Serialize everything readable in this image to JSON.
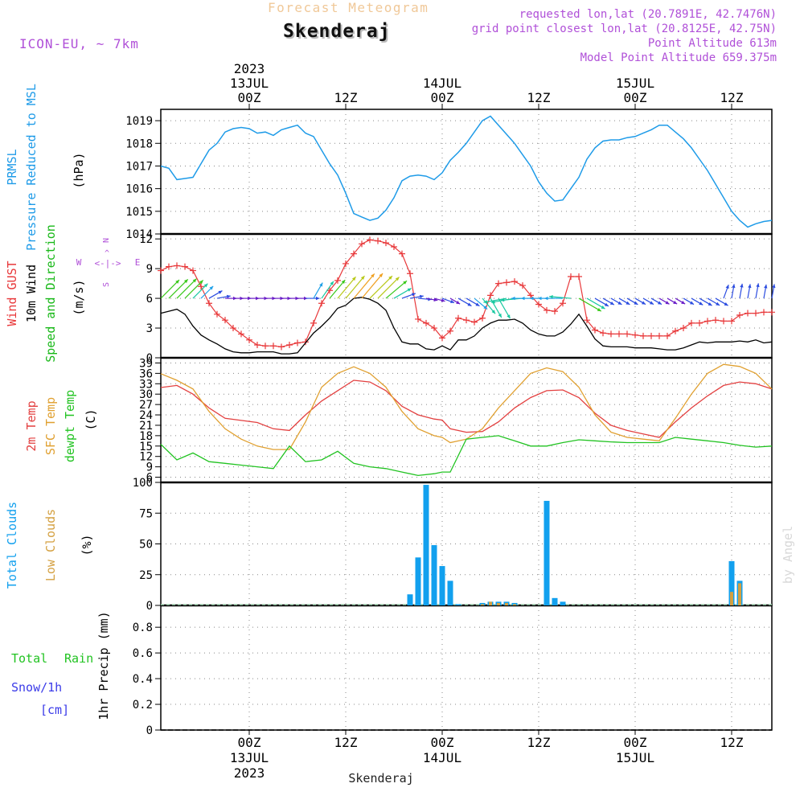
{
  "header": {
    "app_title": "Forecast Meteogram",
    "location": "Skenderaj",
    "model": "ICON-EU, ~ 7km",
    "requested": "requested lon,lat (20.7891E, 42.7476N)",
    "closest": "grid point closest lon,lat (20.8125E, 42.75N)",
    "point_altitude": "Point Altitude 613m",
    "model_altitude": "Model Point Altitude 659.375m",
    "watermark": "by Angel",
    "footer_location": "Skenderaj"
  },
  "time_axis": {
    "ticks": [
      {
        "hour": 0,
        "label": "00Z",
        "date": "13JUL",
        "year": "2023"
      },
      {
        "hour": 12,
        "label": "12Z",
        "date": "",
        "year": ""
      },
      {
        "hour": 24,
        "label": "00Z",
        "date": "14JUL",
        "year": ""
      },
      {
        "hour": 36,
        "label": "12Z",
        "date": "",
        "year": ""
      },
      {
        "hour": 48,
        "label": "00Z",
        "date": "15JUL",
        "year": ""
      },
      {
        "hour": 60,
        "label": "12Z",
        "date": "",
        "year": ""
      }
    ],
    "range_hours": [
      -11,
      65
    ]
  },
  "colors": {
    "pressure": "#1e9be8",
    "gust": "#e8383a",
    "wind": "#000000",
    "wind_label_green": "#18b818",
    "temp2m": "#e34040",
    "sfc_temp": "#e0a030",
    "dewpt": "#22c322",
    "total_clouds": "#12a0ee",
    "low_clouds": "#d4a040",
    "rain": "#22c322",
    "snow": "#3a3ae8",
    "purple": "#b050d8",
    "grid": "#888888"
  },
  "panels": {
    "pressure": {
      "labels": [
        "PRMSL",
        "Pressure Reduced to MSL"
      ],
      "unit": "(hPa)",
      "yticks": [
        1014,
        1015,
        1016,
        1017,
        1018,
        1019
      ]
    },
    "wind": {
      "labels": [
        "Wind GUST",
        "10m Wind",
        "Speed and Direction"
      ],
      "unit": "(m/s)",
      "yticks": [
        0,
        3,
        6,
        9,
        12
      ],
      "compass": {
        "n": "N",
        "s": "S",
        "w": "W",
        "e": "E",
        "arrow_ns": "^",
        "arrow_ew": "<-|->"
      }
    },
    "temp": {
      "labels": [
        "2m Temp",
        "SFC Temp",
        "dewpt Temp"
      ],
      "unit": "(C)",
      "yticks": [
        6,
        9,
        12,
        15,
        18,
        21,
        24,
        27,
        30,
        33,
        36,
        39
      ]
    },
    "clouds": {
      "labels": [
        "Total Clouds",
        "Low Clouds"
      ],
      "unit": "(%)",
      "yticks": [
        0,
        25,
        50,
        75,
        100
      ]
    },
    "precip": {
      "labels": [
        "Total",
        "Rain",
        "Snow/1h",
        "[cm]"
      ],
      "unit": "1hr Precip (mm)",
      "yticks": [
        0,
        0.2,
        0.4,
        0.6,
        0.8
      ]
    }
  },
  "chart_data": [
    {
      "type": "line",
      "title": "PRMSL Pressure Reduced to MSL",
      "ylabel": "(hPa)",
      "ylim": [
        1014,
        1019.5
      ],
      "series": [
        {
          "name": "PRMSL",
          "x": [
            -11,
            -10,
            -9,
            -8,
            -7,
            -6,
            -5,
            -4,
            -3,
            -2,
            -1,
            0,
            1,
            2,
            3,
            4,
            5,
            6,
            7,
            8,
            9,
            10,
            11,
            12,
            13,
            14,
            15,
            16,
            17,
            18,
            19,
            20,
            21,
            22,
            23,
            24,
            25,
            26,
            27,
            28,
            29,
            30,
            31,
            32,
            33,
            34,
            35,
            36,
            37,
            38,
            39,
            40,
            41,
            42,
            43,
            44,
            45,
            46,
            47,
            48,
            49,
            50,
            51,
            52,
            53,
            54,
            55,
            56,
            57,
            58,
            59,
            60,
            61,
            62,
            63,
            64,
            65
          ],
          "values": [
            1017.0,
            1016.9,
            1016.4,
            1016.45,
            1016.5,
            1017.1,
            1017.7,
            1018.0,
            1018.5,
            1018.65,
            1018.7,
            1018.65,
            1018.45,
            1018.5,
            1018.35,
            1018.6,
            1018.7,
            1018.8,
            1018.45,
            1018.3,
            1017.7,
            1017.1,
            1016.6,
            1015.8,
            1014.9,
            1014.75,
            1014.6,
            1014.7,
            1015.05,
            1015.6,
            1016.35,
            1016.55,
            1016.6,
            1016.55,
            1016.4,
            1016.7,
            1017.25,
            1017.6,
            1018.0,
            1018.5,
            1019.0,
            1019.2,
            1018.8,
            1018.4,
            1018.0,
            1017.5,
            1017.0,
            1016.3,
            1015.8,
            1015.45,
            1015.5,
            1016.0,
            1016.5,
            1017.3,
            1017.8,
            1018.1,
            1018.15,
            1018.15,
            1018.25,
            1018.3,
            1018.45,
            1018.6,
            1018.8,
            1018.8,
            1018.5,
            1018.2,
            1017.8,
            1017.3,
            1016.8,
            1016.2,
            1015.6,
            1015.0,
            1014.6,
            1014.3,
            1014.45,
            1014.55,
            1014.6
          ]
        }
      ]
    },
    {
      "type": "line",
      "title": "Wind GUST / 10m Wind Speed and Direction",
      "ylabel": "(m/s)",
      "ylim": [
        0,
        12.5
      ],
      "x": [
        -11,
        -10,
        -9,
        -8,
        -7,
        -6,
        -5,
        -4,
        -3,
        -2,
        -1,
        0,
        1,
        2,
        3,
        4,
        5,
        6,
        7,
        8,
        9,
        10,
        11,
        12,
        13,
        14,
        15,
        16,
        17,
        18,
        19,
        20,
        21,
        22,
        23,
        24,
        25,
        26,
        27,
        28,
        29,
        30,
        31,
        32,
        33,
        34,
        35,
        36,
        37,
        38,
        39,
        40,
        41,
        42,
        43,
        44,
        45,
        46,
        47,
        48,
        49,
        50,
        51,
        52,
        53,
        54,
        55,
        56,
        57,
        58,
        59,
        60,
        61,
        62,
        63,
        64,
        65
      ],
      "series": [
        {
          "name": "Wind GUST",
          "values": [
            8.8,
            9.2,
            9.3,
            9.2,
            8.8,
            7.2,
            5.5,
            4.4,
            3.8,
            3.0,
            2.4,
            1.8,
            1.3,
            1.2,
            1.2,
            1.1,
            1.3,
            1.5,
            1.6,
            3.5,
            5.5,
            6.8,
            7.8,
            9.5,
            10.5,
            11.5,
            11.9,
            11.8,
            11.6,
            11.2,
            10.5,
            8.5,
            3.9,
            3.5,
            3.0,
            2.0,
            2.7,
            4.0,
            3.8,
            3.6,
            4.0,
            6.3,
            7.5,
            7.6,
            7.7,
            7.3,
            6.3,
            5.4,
            4.8,
            4.7,
            5.5,
            8.2,
            8.2,
            3.8,
            2.8,
            2.5,
            2.4,
            2.4,
            2.4,
            2.3,
            2.2,
            2.2,
            2.2,
            2.2,
            2.7,
            3.0,
            3.5,
            3.5,
            3.7,
            3.8,
            3.7,
            3.7,
            4.3,
            4.5,
            4.5,
            4.6,
            4.6
          ]
        },
        {
          "name": "10m Wind",
          "values": [
            4.5,
            4.7,
            4.9,
            4.4,
            3.2,
            2.3,
            1.8,
            1.4,
            0.9,
            0.6,
            0.5,
            0.5,
            0.6,
            0.6,
            0.6,
            0.4,
            0.4,
            0.5,
            1.5,
            2.5,
            3.2,
            4.0,
            5.0,
            5.3,
            6.0,
            6.1,
            5.9,
            5.5,
            4.8,
            3.0,
            1.6,
            1.4,
            1.4,
            0.9,
            0.8,
            1.2,
            0.8,
            1.8,
            1.8,
            2.2,
            3.0,
            3.5,
            3.8,
            3.8,
            3.9,
            3.5,
            2.8,
            2.4,
            2.2,
            2.2,
            2.6,
            3.4,
            4.4,
            3.2,
            1.9,
            1.2,
            1.1,
            1.1,
            1.1,
            1.0,
            1.0,
            1.0,
            0.9,
            0.8,
            0.8,
            1.0,
            1.3,
            1.6,
            1.5,
            1.6,
            1.6,
            1.6,
            1.7,
            1.6,
            1.8,
            1.5,
            1.6
          ]
        },
        {
          "name": "Direction (deg)",
          "values": [
            225,
            225,
            225,
            225,
            225,
            225,
            240,
            260,
            270,
            270,
            270,
            270,
            270,
            270,
            270,
            270,
            270,
            270,
            270,
            210,
            215,
            220,
            220,
            220,
            220,
            220,
            225,
            225,
            230,
            240,
            250,
            260,
            275,
            280,
            285,
            290,
            300,
            300,
            300,
            310,
            320,
            330,
            330,
            80,
            80,
            85,
            90,
            90,
            90,
            90,
            90,
            95,
            300,
            300,
            300,
            300,
            300,
            300,
            300,
            300,
            300,
            300,
            300,
            300,
            300,
            300,
            300,
            300,
            300,
            300,
            200,
            190,
            190,
            190,
            190,
            190,
            190
          ]
        }
      ]
    },
    {
      "type": "line",
      "title": "2m Temp / SFC Temp / dewpt Temp",
      "ylabel": "(C)",
      "ylim": [
        4.5,
        40.5
      ],
      "x": [
        -11,
        -9,
        -7,
        -5,
        -3,
        -1,
        1,
        3,
        5,
        7,
        9,
        11,
        13,
        15,
        17,
        19,
        21,
        23,
        24,
        25,
        27,
        29,
        31,
        33,
        35,
        37,
        39,
        41,
        43,
        45,
        47,
        49,
        51,
        53,
        55,
        57,
        59,
        61,
        63,
        65
      ],
      "series": [
        {
          "name": "2m Temp",
          "values": [
            31.9,
            32.5,
            30.0,
            26.0,
            23.0,
            22.4,
            21.8,
            20.0,
            19.5,
            24.0,
            28.0,
            31.0,
            34.0,
            33.5,
            31.0,
            26.5,
            24.0,
            22.8,
            22.5,
            20.0,
            19.0,
            19.2,
            22.0,
            26.0,
            29.0,
            31.0,
            31.2,
            29.0,
            24.5,
            21.0,
            19.5,
            18.5,
            17.5,
            22.0,
            26.0,
            29.5,
            32.5,
            33.5,
            33.0,
            31.5
          ]
        },
        {
          "name": "SFC Temp",
          "values": [
            35.9,
            34.0,
            31.5,
            25.0,
            20.0,
            17.0,
            15.0,
            14.0,
            14.0,
            22.0,
            32.0,
            36.0,
            37.9,
            36.0,
            32.0,
            25.0,
            20.0,
            18.0,
            17.5,
            16.0,
            17.0,
            20.0,
            26.0,
            31.0,
            36.0,
            37.6,
            36.5,
            32.0,
            24.0,
            19.0,
            17.5,
            17.0,
            16.5,
            23.0,
            30.0,
            36.0,
            38.6,
            38.0,
            36.0,
            31.5
          ]
        },
        {
          "name": "dewpt Temp",
          "values": [
            15.5,
            11.0,
            13.0,
            10.5,
            10.0,
            9.5,
            9.0,
            8.5,
            15.0,
            10.5,
            11.0,
            13.5,
            10.0,
            9.0,
            8.5,
            7.5,
            6.5,
            7.0,
            7.5,
            7.5,
            17.0,
            17.5,
            18.0,
            16.5,
            15.0,
            15.0,
            16.0,
            16.8,
            16.5,
            16.2,
            16.0,
            16.0,
            16.0,
            17.5,
            17.0,
            16.5,
            16.0,
            15.2,
            14.7,
            15.0
          ]
        }
      ]
    },
    {
      "type": "bar",
      "title": "Total Clouds / Low Clouds",
      "ylabel": "(%)",
      "ylim": [
        0,
        100
      ],
      "series": [
        {
          "name": "Total Clouds",
          "x": [
            20,
            21,
            22,
            23,
            24,
            25,
            26,
            29,
            30,
            31,
            32,
            33,
            37,
            38,
            39,
            60,
            61
          ],
          "values": [
            9,
            39,
            98,
            49,
            32,
            20,
            1,
            2,
            3,
            3,
            3,
            2,
            85,
            6,
            3,
            36,
            20
          ]
        },
        {
          "name": "Low Clouds",
          "x": [
            29,
            30,
            31,
            32,
            33,
            60,
            61
          ],
          "values": [
            1,
            3,
            2,
            2,
            1,
            11,
            18
          ]
        }
      ]
    },
    {
      "type": "bar",
      "title": "1hr Precip (mm)",
      "ylabel": "1hr Precip (mm)",
      "ylim": [
        0,
        0.97
      ],
      "series": [
        {
          "name": "Total Rain",
          "x": [],
          "values": []
        },
        {
          "name": "Snow/1h",
          "x": [],
          "values": []
        }
      ]
    }
  ]
}
